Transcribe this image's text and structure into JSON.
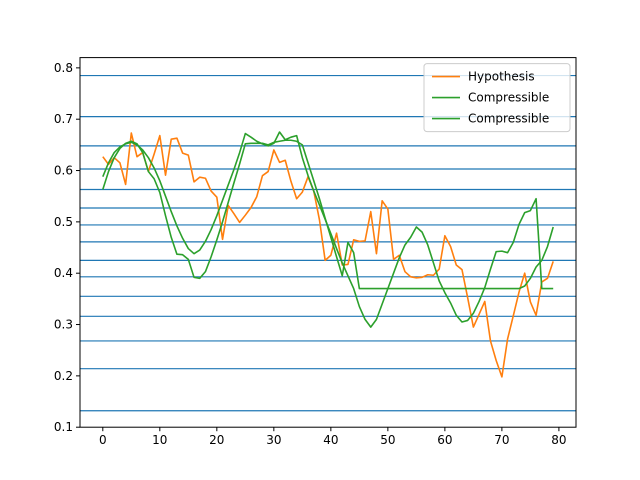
{
  "chart_data": {
    "type": "line",
    "xlim": [
      -4,
      83
    ],
    "ylim": [
      0.1,
      0.82
    ],
    "xticks": [
      0,
      10,
      20,
      30,
      40,
      50,
      60,
      70,
      80
    ],
    "yticks": [
      0.1,
      0.2,
      0.3,
      0.4,
      0.5,
      0.6,
      0.7,
      0.8
    ],
    "xtick_labels": [
      "0",
      "10",
      "20",
      "30",
      "40",
      "50",
      "60",
      "70",
      "80"
    ],
    "ytick_labels": [
      "0.1",
      "0.2",
      "0.3",
      "0.4",
      "0.5",
      "0.6",
      "0.7",
      "0.8"
    ],
    "grid": false,
    "legend_position": "top-right",
    "hlines": {
      "color": "#1f77b4",
      "values": [
        0.132,
        0.214,
        0.268,
        0.316,
        0.355,
        0.393,
        0.425,
        0.461,
        0.494,
        0.527,
        0.563,
        0.603,
        0.648,
        0.705,
        0.785
      ]
    },
    "series": [
      {
        "name": "Hypothesis",
        "color": "#ff7f0e",
        "values": [
          0.627,
          0.612,
          0.625,
          0.615,
          0.573,
          0.673,
          0.627,
          0.635,
          0.598,
          0.632,
          0.668,
          0.591,
          0.661,
          0.663,
          0.634,
          0.63,
          0.578,
          0.587,
          0.585,
          0.56,
          0.548,
          0.466,
          0.532,
          0.516,
          0.499,
          0.513,
          0.528,
          0.549,
          0.59,
          0.598,
          0.64,
          0.616,
          0.62,
          0.579,
          0.545,
          0.558,
          0.588,
          0.56,
          0.504,
          0.425,
          0.435,
          0.478,
          0.416,
          0.417,
          0.465,
          0.462,
          0.463,
          0.52,
          0.438,
          0.541,
          0.525,
          0.427,
          0.435,
          0.403,
          0.393,
          0.391,
          0.392,
          0.397,
          0.396,
          0.408,
          0.473,
          0.452,
          0.416,
          0.407,
          0.352,
          0.295,
          0.32,
          0.345,
          0.268,
          0.23,
          0.198,
          0.272,
          0.317,
          0.363,
          0.4,
          0.344,
          0.318,
          0.383,
          0.39,
          0.423
        ]
      },
      {
        "name": "Compressible",
        "color": "#2ca02c",
        "values": [
          0.588,
          0.615,
          0.635,
          0.646,
          0.652,
          0.655,
          0.65,
          0.64,
          0.625,
          0.605,
          0.58,
          0.55,
          0.52,
          0.492,
          0.468,
          0.448,
          0.438,
          0.445,
          0.462,
          0.485,
          0.512,
          0.542,
          0.572,
          0.602,
          0.635,
          0.672,
          0.665,
          0.657,
          0.652,
          0.648,
          0.653,
          0.675,
          0.66,
          0.665,
          0.668,
          0.625,
          0.59,
          0.56,
          0.533,
          0.505,
          0.477,
          0.448,
          0.42,
          0.395,
          0.37,
          0.335,
          0.31,
          0.295,
          0.31,
          0.34,
          0.37,
          0.4,
          0.43,
          0.455,
          0.47,
          0.49,
          0.48,
          0.455,
          0.42,
          0.385,
          0.362,
          0.342,
          0.318,
          0.305,
          0.308,
          0.322,
          0.345,
          0.372,
          0.408,
          0.442,
          0.443,
          0.44,
          0.46,
          0.495,
          0.518,
          0.522,
          0.545,
          0.37,
          0.37,
          0.37
        ]
      },
      {
        "name": "Compressible",
        "color": "#2ca02c",
        "values": [
          0.563,
          0.598,
          0.625,
          0.643,
          0.653,
          0.657,
          0.652,
          0.635,
          0.598,
          0.584,
          0.557,
          0.512,
          0.47,
          0.437,
          0.436,
          0.427,
          0.392,
          0.39,
          0.403,
          0.432,
          0.465,
          0.5,
          0.538,
          0.576,
          0.613,
          0.652,
          0.653,
          0.653,
          0.653,
          0.65,
          0.655,
          0.657,
          0.659,
          0.659,
          0.657,
          0.65,
          0.615,
          0.58,
          0.545,
          0.507,
          0.47,
          0.432,
          0.395,
          0.46,
          0.44,
          0.37,
          0.37,
          0.37,
          0.37,
          0.37,
          0.37,
          0.37,
          0.37,
          0.37,
          0.37,
          0.37,
          0.37,
          0.37,
          0.37,
          0.37,
          0.37,
          0.37,
          0.37,
          0.37,
          0.37,
          0.37,
          0.37,
          0.37,
          0.37,
          0.37,
          0.37,
          0.37,
          0.37,
          0.37,
          0.375,
          0.39,
          0.412,
          0.425,
          0.452,
          0.49
        ]
      }
    ]
  }
}
